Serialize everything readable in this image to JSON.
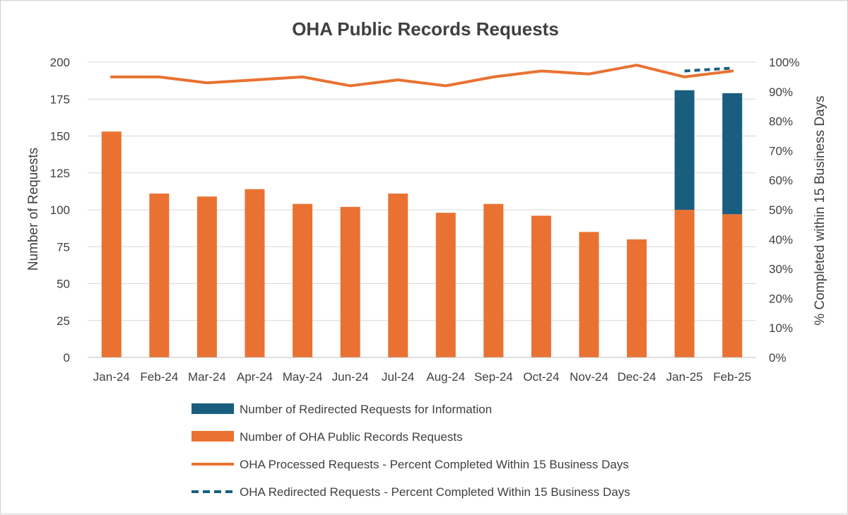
{
  "chart_data": {
    "type": "bar",
    "title": "OHA Public Records Requests",
    "categories": [
      "Jan-24",
      "Feb-24",
      "Mar-24",
      "Apr-24",
      "May-24",
      "Jun-24",
      "Jul-24",
      "Aug-24",
      "Sep-24",
      "Oct-24",
      "Nov-24",
      "Dec-24",
      "Jan-25",
      "Feb-25"
    ],
    "ylabel": "Number of Requests",
    "y2label": "% Completed within 15 Business Days",
    "ylim": [
      0,
      200
    ],
    "yticks": [
      "0",
      "25",
      "50",
      "75",
      "100",
      "125",
      "150",
      "175",
      "200"
    ],
    "y2lim": [
      0,
      100
    ],
    "y2ticks": [
      "0%",
      "10%",
      "20%",
      "30%",
      "40%",
      "50%",
      "60%",
      "70%",
      "80%",
      "90%",
      "100%"
    ],
    "grid": true,
    "legend_position": "bottom",
    "series": [
      {
        "name": "Number of Redirected Requests for Information",
        "kind": "bar",
        "stacked": true,
        "axis": "left",
        "color": "#1a5e7f",
        "values": [
          null,
          null,
          null,
          null,
          null,
          null,
          null,
          null,
          null,
          null,
          null,
          null,
          81,
          82
        ]
      },
      {
        "name": "Number of OHA Public Records Requests",
        "kind": "bar",
        "stacked": true,
        "axis": "left",
        "color": "#e97232",
        "values": [
          153,
          111,
          109,
          114,
          104,
          102,
          111,
          98,
          104,
          96,
          85,
          80,
          100,
          97
        ]
      },
      {
        "name": "OHA Processed Requests - Percent Completed Within 15 Business Days",
        "kind": "line",
        "axis": "right",
        "color": "#e97232",
        "dash": "solid",
        "values": [
          95,
          95,
          93,
          94,
          95,
          92,
          94,
          92,
          95,
          97,
          96,
          99,
          95,
          97
        ]
      },
      {
        "name": "OHA Redirected Requests - Percent Completed Within 15 Business Days",
        "kind": "line",
        "axis": "right",
        "color": "#1a5e7f",
        "dash": "dashed",
        "values": [
          null,
          null,
          null,
          null,
          null,
          null,
          null,
          null,
          null,
          null,
          null,
          null,
          97,
          98
        ]
      }
    ]
  }
}
